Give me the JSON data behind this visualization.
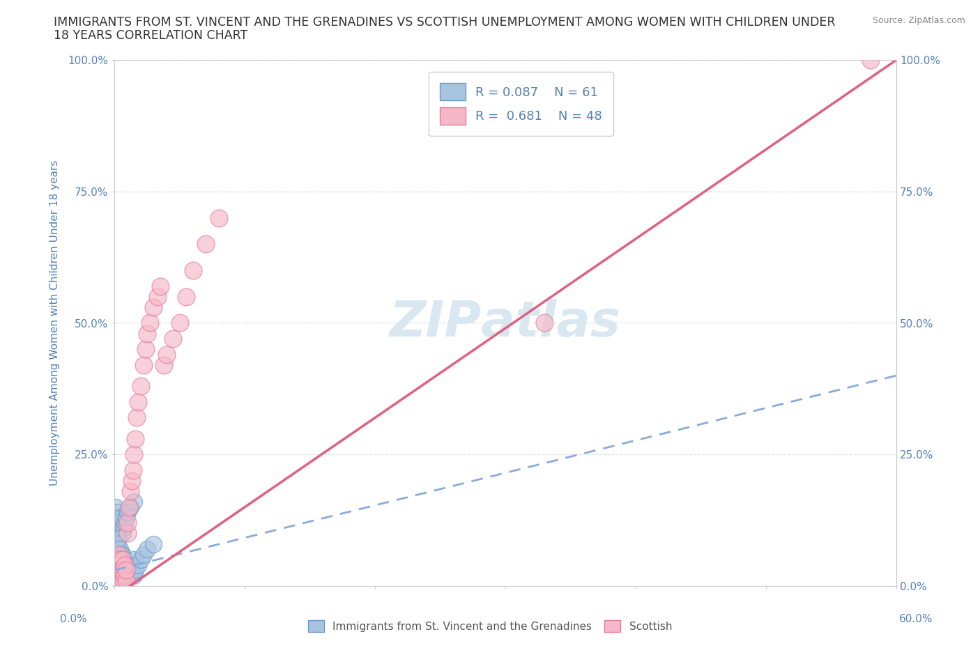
{
  "title_line1": "IMMIGRANTS FROM ST. VINCENT AND THE GRENADINES VS SCOTTISH UNEMPLOYMENT AMONG WOMEN WITH CHILDREN UNDER",
  "title_line2": "18 YEARS CORRELATION CHART",
  "source": "Source: ZipAtlas.com",
  "ylabel": "Unemployment Among Women with Children Under 18 years",
  "legend_label_blue": "Immigrants from St. Vincent and the Grenadines",
  "legend_label_pink": "Scottish",
  "R_blue": 0.087,
  "N_blue": 61,
  "R_pink": 0.681,
  "N_pink": 48,
  "xlim": [
    0.0,
    0.6
  ],
  "ylim": [
    0.0,
    1.0
  ],
  "yticks": [
    0.0,
    0.25,
    0.5,
    0.75,
    1.0
  ],
  "ytick_labels": [
    "0.0%",
    "25.0%",
    "50.0%",
    "75.0%",
    "100.0%"
  ],
  "color_blue_fill": "#a8c4e0",
  "color_blue_edge": "#6699cc",
  "color_pink_fill": "#f5b8c8",
  "color_pink_edge": "#e87898",
  "color_blue_line": "#88aadd",
  "color_pink_line": "#e06080",
  "color_text": "#5580bb",
  "color_watermark": "#d5e5f0",
  "color_grid": "#dddddd",
  "background": "#ffffff",
  "blue_x": [
    0.001,
    0.001,
    0.001,
    0.002,
    0.002,
    0.002,
    0.002,
    0.003,
    0.003,
    0.003,
    0.003,
    0.004,
    0.004,
    0.004,
    0.005,
    0.005,
    0.005,
    0.006,
    0.006,
    0.006,
    0.007,
    0.007,
    0.008,
    0.008,
    0.009,
    0.009,
    0.01,
    0.01,
    0.011,
    0.012,
    0.013,
    0.014,
    0.015,
    0.015,
    0.016,
    0.018,
    0.02,
    0.022,
    0.025,
    0.03,
    0.001,
    0.001,
    0.002,
    0.002,
    0.003,
    0.003,
    0.004,
    0.005,
    0.006,
    0.007,
    0.008,
    0.009,
    0.01,
    0.012,
    0.015,
    0.002,
    0.003,
    0.004,
    0.005,
    0.006,
    0.007
  ],
  "blue_y": [
    0.01,
    0.02,
    0.03,
    0.01,
    0.02,
    0.04,
    0.05,
    0.01,
    0.03,
    0.05,
    0.07,
    0.02,
    0.04,
    0.06,
    0.01,
    0.03,
    0.05,
    0.02,
    0.04,
    0.06,
    0.01,
    0.03,
    0.02,
    0.04,
    0.01,
    0.03,
    0.02,
    0.04,
    0.03,
    0.02,
    0.04,
    0.03,
    0.02,
    0.05,
    0.03,
    0.04,
    0.05,
    0.06,
    0.07,
    0.08,
    0.12,
    0.15,
    0.1,
    0.13,
    0.11,
    0.14,
    0.12,
    0.13,
    0.1,
    0.11,
    0.12,
    0.13,
    0.14,
    0.15,
    0.16,
    0.08,
    0.09,
    0.07,
    0.06,
    0.05,
    0.04
  ],
  "pink_x": [
    0.0,
    0.001,
    0.001,
    0.002,
    0.002,
    0.002,
    0.003,
    0.003,
    0.003,
    0.004,
    0.004,
    0.005,
    0.005,
    0.006,
    0.007,
    0.007,
    0.008,
    0.008,
    0.009,
    0.009,
    0.01,
    0.01,
    0.011,
    0.012,
    0.013,
    0.014,
    0.015,
    0.016,
    0.017,
    0.018,
    0.02,
    0.022,
    0.024,
    0.025,
    0.027,
    0.03,
    0.033,
    0.035,
    0.038,
    0.04,
    0.045,
    0.05,
    0.055,
    0.06,
    0.07,
    0.08,
    0.33,
    0.58
  ],
  "pink_y": [
    0.0,
    0.01,
    0.02,
    0.01,
    0.03,
    0.05,
    0.02,
    0.04,
    0.06,
    0.03,
    0.05,
    0.01,
    0.03,
    0.05,
    0.01,
    0.03,
    0.02,
    0.04,
    0.01,
    0.03,
    0.1,
    0.12,
    0.15,
    0.18,
    0.2,
    0.22,
    0.25,
    0.28,
    0.32,
    0.35,
    0.38,
    0.42,
    0.45,
    0.48,
    0.5,
    0.53,
    0.55,
    0.57,
    0.42,
    0.44,
    0.47,
    0.5,
    0.55,
    0.6,
    0.65,
    0.7,
    0.5,
    1.0
  ],
  "blue_trend_x": [
    0.0,
    0.6
  ],
  "blue_trend_y": [
    0.03,
    0.4
  ],
  "pink_trend_x": [
    0.0,
    0.6
  ],
  "pink_trend_y": [
    -0.02,
    1.0
  ]
}
